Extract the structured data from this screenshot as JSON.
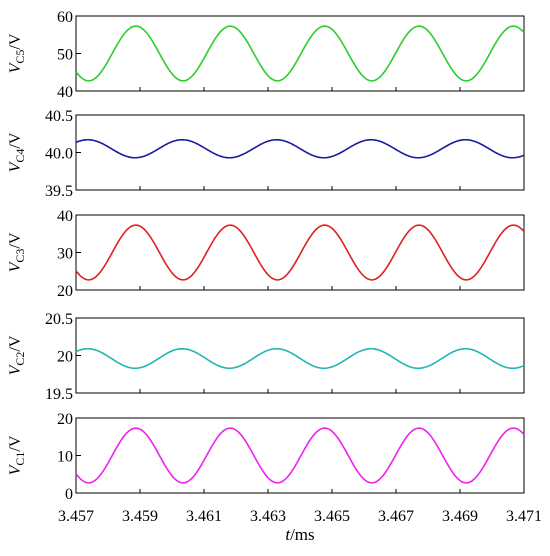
{
  "chart_data": {
    "type": "line",
    "xlabel": {
      "var": "t",
      "unit": "/ms"
    },
    "x_range": [
      3.457,
      3.471
    ],
    "x_ticks": [
      "3.457",
      "3.459",
      "3.461",
      "3.463",
      "3.465",
      "3.467",
      "3.469",
      "3.471"
    ],
    "panels": [
      {
        "name": "VC5",
        "ylabel": {
          "v": "V",
          "sub": "C5",
          "unit": "/V"
        },
        "ylim": [
          40,
          60
        ],
        "y_ticks": [
          "60",
          "50",
          "40"
        ],
        "color": "#2ecc2e",
        "mean": 50,
        "amplitude": 7.3,
        "period": 0.00295,
        "peak_x": 3.45887,
        "y_start": 45.5
      },
      {
        "name": "VC4",
        "ylabel": {
          "v": "V",
          "sub": "C4",
          "unit": "/V"
        },
        "ylim": [
          39.5,
          40.5
        ],
        "y_ticks": [
          "40.5",
          "40.0",
          "39.5"
        ],
        "color": "#1a1aa0",
        "mean": 40.05,
        "amplitude": 0.12,
        "period": 0.00295,
        "peak_x": 3.45737,
        "y_start": 40.14
      },
      {
        "name": "VC3",
        "ylabel": {
          "v": "V",
          "sub": "C3",
          "unit": "/V"
        },
        "ylim": [
          20,
          40
        ],
        "y_ticks": [
          "40",
          "30",
          "20"
        ],
        "color": "#e02020",
        "mean": 30,
        "amplitude": 7.3,
        "period": 0.00295,
        "peak_x": 3.45887,
        "y_start": 25.5
      },
      {
        "name": "VC2",
        "ylabel": {
          "v": "V",
          "sub": "C2",
          "unit": "/V"
        },
        "ylim": [
          19.5,
          20.5
        ],
        "y_ticks": [
          "20.5",
          "20",
          "19.5"
        ],
        "color": "#22b5b5",
        "mean": 19.96,
        "amplitude": 0.13,
        "period": 0.00295,
        "peak_x": 3.45737,
        "y_start": 20.05
      },
      {
        "name": "VC1",
        "ylabel": {
          "v": "V",
          "sub": "C1",
          "unit": "/V"
        },
        "ylim": [
          0,
          20
        ],
        "y_ticks": [
          "20",
          "10",
          "0"
        ],
        "color": "#ee22ee",
        "mean": 10,
        "amplitude": 7.3,
        "period": 0.00295,
        "peak_x": 3.45887,
        "y_start": 5.5
      }
    ]
  }
}
